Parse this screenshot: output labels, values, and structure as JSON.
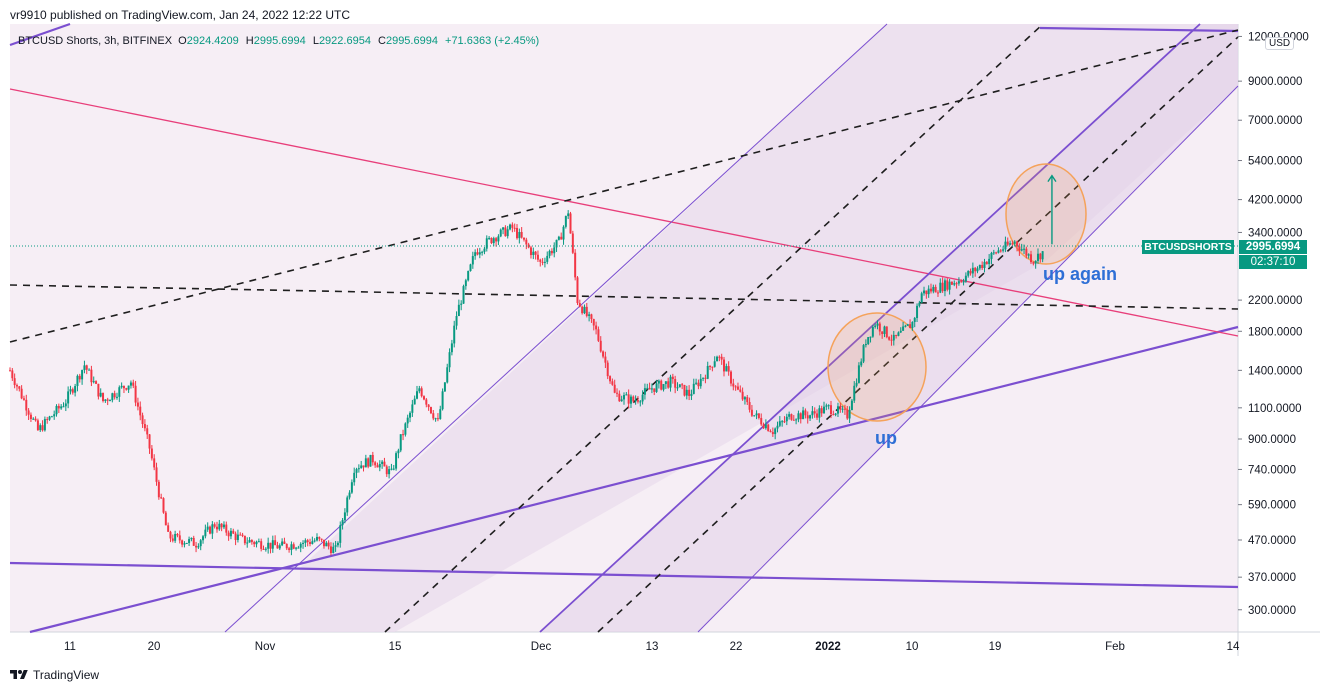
{
  "header": {
    "published": "vr9910 published on TradingView.com, Jan 24, 2022 12:22 UTC"
  },
  "ohlc": {
    "symbol": "BTCUSD Shorts, 3h, BITFINEX",
    "o_label": "O",
    "o": "2924.4209",
    "h_label": "H",
    "h": "2995.6994",
    "l_label": "L",
    "l": "2922.6954",
    "c_label": "C",
    "c": "2995.6994",
    "change": "+71.6363 (+2.45%)"
  },
  "price_axis": {
    "unit": "USD",
    "ticks": [
      "12000.0000",
      "9000.0000",
      "7000.0000",
      "5400.0000",
      "4200.0000",
      "3400.0000",
      "2200.0000",
      "1800.0000",
      "1400.0000",
      "1100.0000",
      "900.0000",
      "740.0000",
      "590.0000",
      "470.0000",
      "370.0000",
      "300.0000"
    ],
    "last_price": "2995.6994",
    "countdown": "02:37:10",
    "symbol_tag": "BTCUSDSHORTS"
  },
  "time_axis": {
    "labels": [
      "11",
      "20",
      "Nov",
      "15",
      "Dec",
      "13",
      "22",
      "2022",
      "10",
      "19",
      "Feb",
      "14"
    ]
  },
  "annotations": {
    "up": "up",
    "up_again": "up again"
  },
  "footer": {
    "brand": "TradingView"
  },
  "colors": {
    "up": "#089981",
    "down": "#f23645",
    "channel": "#7b4fd0",
    "pink_line": "#e83e7a",
    "circle": "#f5a25a",
    "label_blue": "#2e6fd6",
    "band_fill": "#eadcec"
  },
  "chart_data": {
    "type": "candlestick",
    "title": "BTCUSD Shorts, 3h, BITFINEX",
    "ylabel": "USD",
    "yscale": "log",
    "ylim": [
      260,
      13000
    ],
    "x_range": [
      "2021-10-05",
      "2022-02-14"
    ],
    "ohlc_last": {
      "open": 2924.4209,
      "high": 2995.6994,
      "low": 2922.6954,
      "close": 2995.6994,
      "change": 71.6363,
      "change_pct": 2.45
    },
    "close_path": [
      {
        "date": "2021-10-05",
        "price": 1400
      },
      {
        "date": "2021-10-08",
        "price": 950
      },
      {
        "date": "2021-10-11",
        "price": 1150
      },
      {
        "date": "2021-10-13",
        "price": 1450
      },
      {
        "date": "2021-10-15",
        "price": 1150
      },
      {
        "date": "2021-10-18",
        "price": 1300
      },
      {
        "date": "2021-10-20",
        "price": 850
      },
      {
        "date": "2021-10-22",
        "price": 480
      },
      {
        "date": "2021-10-25",
        "price": 460
      },
      {
        "date": "2021-10-27",
        "price": 520
      },
      {
        "date": "2021-10-30",
        "price": 470
      },
      {
        "date": "2021-11-03",
        "price": 450
      },
      {
        "date": "2021-11-07",
        "price": 470
      },
      {
        "date": "2021-11-09",
        "price": 440
      },
      {
        "date": "2021-11-11",
        "price": 750
      },
      {
        "date": "2021-11-13",
        "price": 790
      },
      {
        "date": "2021-11-15",
        "price": 720
      },
      {
        "date": "2021-11-16",
        "price": 900
      },
      {
        "date": "2021-11-18",
        "price": 1250
      },
      {
        "date": "2021-11-20",
        "price": 1000
      },
      {
        "date": "2021-11-22",
        "price": 2000
      },
      {
        "date": "2021-11-24",
        "price": 3000
      },
      {
        "date": "2021-11-26",
        "price": 3300
      },
      {
        "date": "2021-11-28",
        "price": 3500
      },
      {
        "date": "2021-12-01",
        "price": 2800
      },
      {
        "date": "2021-12-03",
        "price": 3200
      },
      {
        "date": "2021-12-04",
        "price": 3900
      },
      {
        "date": "2021-12-05",
        "price": 2200
      },
      {
        "date": "2021-12-07",
        "price": 1800
      },
      {
        "date": "2021-12-09",
        "price": 1200
      },
      {
        "date": "2021-12-11",
        "price": 1150
      },
      {
        "date": "2021-12-13",
        "price": 1250
      },
      {
        "date": "2021-12-15",
        "price": 1300
      },
      {
        "date": "2021-12-17",
        "price": 1200
      },
      {
        "date": "2021-12-19",
        "price": 1400
      },
      {
        "date": "2021-12-20",
        "price": 1550
      },
      {
        "date": "2021-12-22",
        "price": 1250
      },
      {
        "date": "2021-12-24",
        "price": 1050
      },
      {
        "date": "2021-12-26",
        "price": 950
      },
      {
        "date": "2021-12-28",
        "price": 1050
      },
      {
        "date": "2021-12-30",
        "price": 1050
      },
      {
        "date": "2022-01-01",
        "price": 1100
      },
      {
        "date": "2022-01-03",
        "price": 1050
      },
      {
        "date": "2022-01-05",
        "price": 1700
      },
      {
        "date": "2022-01-06",
        "price": 1900
      },
      {
        "date": "2022-01-08",
        "price": 1700
      },
      {
        "date": "2022-01-10",
        "price": 1900
      },
      {
        "date": "2022-01-11",
        "price": 2300
      },
      {
        "date": "2022-01-13",
        "price": 2400
      },
      {
        "date": "2022-01-15",
        "price": 2500
      },
      {
        "date": "2022-01-17",
        "price": 2700
      },
      {
        "date": "2022-01-19",
        "price": 3000
      },
      {
        "date": "2022-01-21",
        "price": 3200
      },
      {
        "date": "2022-01-23",
        "price": 2850
      },
      {
        "date": "2022-01-24",
        "price": 2995.6994
      }
    ],
    "projection_arrow": {
      "from": {
        "date": "2022-01-25",
        "price": 3150
      },
      "to": {
        "date": "2022-01-25",
        "price": 4900
      }
    },
    "annotations": [
      {
        "text": "up",
        "date": "2022-01-06",
        "price": 870
      },
      {
        "text": "up again",
        "date": "2022-01-26",
        "price": 2650
      }
    ]
  }
}
